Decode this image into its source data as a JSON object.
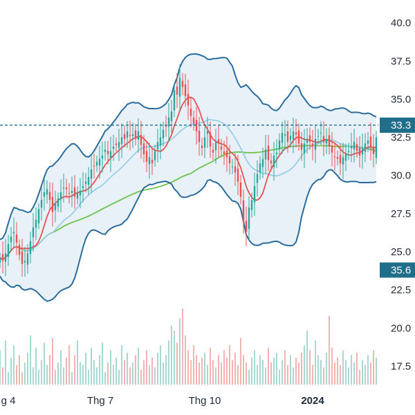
{
  "chart_data": {
    "type": "line",
    "series_kind": "candlestick with Bollinger bands, moving averages and volume",
    "x_ticks": [
      "g 4",
      "Thg 7",
      "Thg 10",
      "2024"
    ],
    "y_ticks": [
      "40.0",
      "37.5",
      "35.0",
      "32.5",
      "30.0",
      "27.5",
      "25.0",
      "22.5",
      "20.0",
      "17.5"
    ],
    "ylim": [
      17.2,
      40.6
    ],
    "grid": false,
    "price_line": {
      "value": 33.3,
      "label": "33.3",
      "color": "#1f6f8b"
    },
    "last_label": {
      "label": "35.6",
      "color": "#1f6f8b"
    },
    "colors": {
      "up": "#2ba59a",
      "down": "#e8514f",
      "bollinger": "#2a6b9e",
      "band_fill": "#e8f1f8",
      "ma_short": "#e8514f",
      "ma_mid": "#8fcbe8",
      "ma_long": "#6cc24a",
      "volume_up": "#a8d8d2",
      "volume_down": "#f2b3b2"
    },
    "x": [
      0,
      4,
      8,
      12,
      16,
      20,
      24,
      28,
      32,
      36,
      40,
      44,
      48,
      52,
      56,
      60,
      64,
      68,
      72,
      76,
      80,
      84,
      88,
      92,
      96,
      100,
      104,
      108,
      112,
      116,
      120,
      124,
      128,
      132,
      136,
      140,
      144,
      148,
      152,
      156,
      160,
      164,
      168,
      172,
      176,
      180,
      184,
      188,
      192,
      196,
      200,
      204,
      208,
      212,
      216,
      220,
      224,
      228,
      232,
      236,
      240,
      244,
      248,
      252,
      256,
      260,
      264,
      268,
      272,
      276,
      280,
      284,
      288,
      292,
      296,
      300,
      304,
      308,
      312,
      316,
      320,
      324,
      328,
      332,
      336,
      340,
      344,
      348,
      352,
      356,
      360,
      364,
      368,
      372,
      376,
      380,
      384,
      388,
      392,
      396,
      400,
      404,
      408,
      412,
      416,
      420,
      424,
      428,
      432,
      436,
      440,
      444,
      448,
      452,
      456,
      460,
      464,
      468,
      472,
      476,
      480,
      484,
      488,
      492,
      496,
      500,
      504,
      508,
      512,
      516,
      520,
      524,
      528,
      532,
      536,
      540,
      544
    ],
    "close": [
      24.6,
      24.4,
      24.9,
      25.5,
      26.0,
      26.3,
      25.6,
      24.8,
      24.2,
      24.4,
      24.9,
      25.7,
      26.6,
      27.1,
      27.8,
      28.4,
      28.9,
      29.1,
      28.4,
      27.6,
      28.2,
      28.5,
      28.9,
      29.2,
      29.1,
      28.8,
      29.0,
      28.6,
      28.9,
      29.0,
      29.3,
      29.6,
      29.9,
      30.4,
      30.6,
      30.9,
      31.1,
      31.3,
      31.7,
      31.4,
      31.6,
      31.9,
      32.0,
      32.2,
      32.5,
      32.4,
      32.9,
      32.6,
      32.7,
      32.4,
      32.9,
      32.0,
      31.4,
      30.9,
      31.2,
      30.8,
      31.6,
      32.2,
      32.5,
      33.0,
      33.2,
      33.8,
      34.2,
      35.6,
      35.3,
      36.4,
      35.8,
      35.2,
      34.6,
      33.9,
      33.4,
      32.9,
      32.2,
      31.8,
      32.5,
      32.9,
      31.9,
      31.5,
      32.2,
      32.1,
      31.7,
      31.4,
      31.2,
      30.8,
      30.6,
      30.2,
      29.6,
      28.6,
      26.9,
      26.3,
      27.9,
      28.4,
      29.3,
      30.1,
      30.8,
      31.1,
      31.7,
      31.0,
      30.8,
      31.3,
      31.5,
      32.3,
      32.8,
      32.7,
      32.2,
      32.6,
      32.9,
      32.7,
      32.1,
      31.7,
      32.1,
      32.4,
      32.2,
      31.9,
      32.4,
      32.6,
      32.8,
      32.2,
      32.4,
      31.9,
      31.5,
      31.2,
      31.1,
      30.8,
      31.2,
      31.4,
      31.6,
      31.9,
      32.2,
      31.6,
      31.3,
      31.8,
      32.1,
      32.3,
      31.9,
      31.4,
      32.5
    ],
    "volume": [
      14,
      7,
      18,
      5,
      11,
      16,
      8,
      12,
      5,
      9,
      13,
      20,
      7,
      15,
      6,
      10,
      17,
      8,
      12,
      19,
      6,
      9,
      14,
      7,
      11,
      16,
      5,
      12,
      18,
      9,
      8,
      13,
      6,
      15,
      10,
      7,
      12,
      17,
      5,
      9,
      14,
      8,
      11,
      6,
      16,
      10,
      13,
      7,
      9,
      12,
      15,
      6,
      10,
      14,
      8,
      11,
      7,
      13,
      16,
      9,
      12,
      18,
      24,
      22,
      17,
      27,
      31,
      20,
      14,
      10,
      16,
      12,
      9,
      11,
      13,
      8,
      15,
      10,
      7,
      12,
      9,
      14,
      11,
      16,
      10,
      13,
      8,
      19,
      12,
      9,
      6,
      11,
      14,
      8,
      12,
      10,
      7,
      15,
      9,
      11,
      13,
      6,
      10,
      14,
      8,
      12,
      7,
      11,
      9,
      13,
      16,
      22,
      14,
      8,
      18,
      12,
      10,
      7,
      13,
      28,
      15,
      9,
      11,
      8,
      14,
      10,
      7,
      12,
      9,
      13,
      6,
      10,
      8,
      12,
      9,
      14,
      11
    ]
  }
}
